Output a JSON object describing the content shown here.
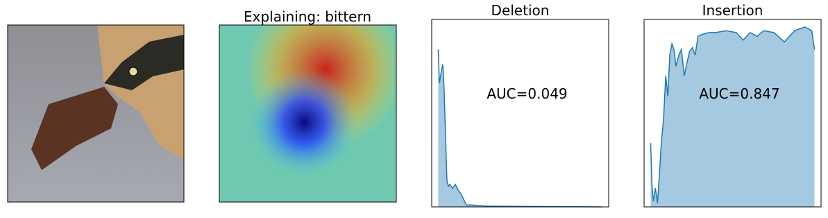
{
  "images": {
    "title": "Explaining: bittern"
  },
  "chart_data": [
    {
      "type": "area",
      "title": "Deletion",
      "annotation": "AUC=0.049",
      "x": [
        0,
        0.007,
        0.02,
        0.028,
        0.036,
        0.045,
        0.053,
        0.062,
        0.07,
        0.087,
        0.104,
        0.121,
        0.138,
        0.155,
        0.172,
        0.206,
        0.29,
        1
      ],
      "values": [
        0.84,
        0.66,
        0.73,
        0.76,
        0.62,
        0.36,
        0.14,
        0.11,
        0.12,
        0.1,
        0.12,
        0.09,
        0.07,
        0.04,
        0.01,
        0.01,
        0.004,
        0
      ],
      "color": "#1f77b4",
      "xlim": [
        -0.04,
        1.04
      ],
      "ylim": [
        0,
        1
      ]
    },
    {
      "type": "area",
      "title": "Insertion",
      "annotation": "AUC=0.847",
      "x": [
        0,
        0.008,
        0.017,
        0.029,
        0.042,
        0.054,
        0.067,
        0.079,
        0.092,
        0.105,
        0.117,
        0.13,
        0.142,
        0.155,
        0.172,
        0.188,
        0.205,
        0.222,
        0.238,
        0.255,
        0.272,
        0.289,
        0.314,
        0.356,
        0.397,
        0.46,
        0.523,
        0.565,
        0.607,
        0.649,
        0.69,
        0.753,
        0.816,
        0.879,
        0.941,
        0.983,
        1
      ],
      "values": [
        0.34,
        0.12,
        0.03,
        0.1,
        0.02,
        0.18,
        0.36,
        0.47,
        0.7,
        0.59,
        0.81,
        0.87,
        0.84,
        0.75,
        0.81,
        0.84,
        0.7,
        0.77,
        0.83,
        0.85,
        0.81,
        0.91,
        0.92,
        0.93,
        0.93,
        0.94,
        0.93,
        0.89,
        0.93,
        0.91,
        0.94,
        0.93,
        0.88,
        0.94,
        0.96,
        0.94,
        0.84
      ],
      "color": "#1f77b4",
      "xlim": [
        -0.04,
        1.04
      ],
      "ylim": [
        0,
        1
      ]
    }
  ]
}
